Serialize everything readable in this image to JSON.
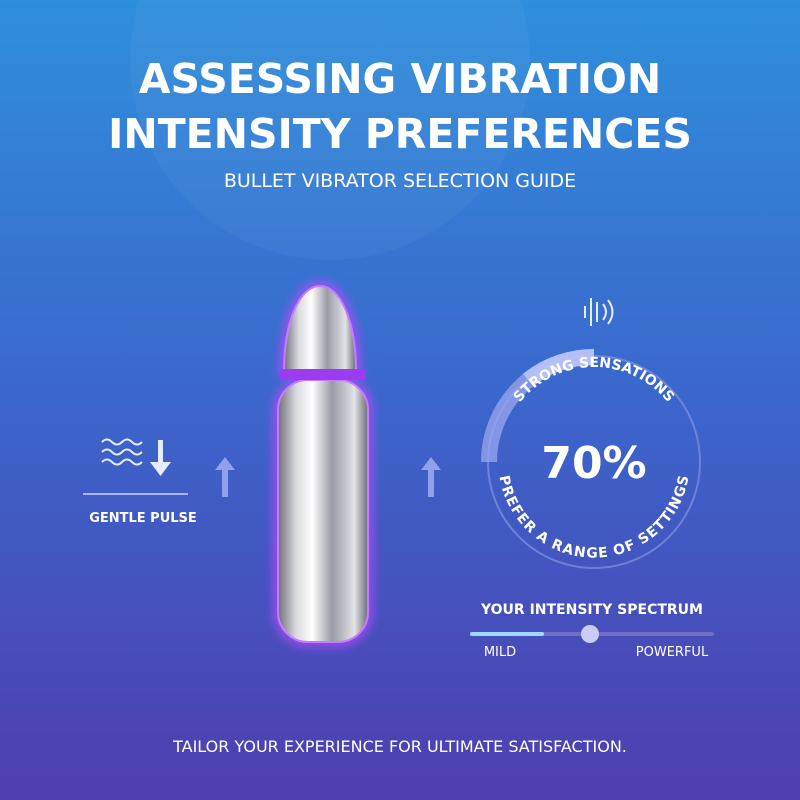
{
  "header": {
    "title_lines": [
      "ASSESSING VIBRATION",
      "INTENSITY PREFERENCES"
    ],
    "subtitle": "BULLET VIBRATOR SELECTION GUIDE"
  },
  "left_panel": {
    "label": "GENTLE PULSE"
  },
  "gauge": {
    "top_label": "STRONG SENSATIONS",
    "stat": "70%",
    "bottom_label": "PREFER A RANGE OF SETTINGS"
  },
  "spectrum": {
    "title": "YOUR INTENSITY SPECTRUM",
    "min_label": "MILD",
    "max_label": "POWERFUL"
  },
  "footer": "TAILOR YOUR EXPERIENCE FOR ULTIMATE SATISFACTION."
}
